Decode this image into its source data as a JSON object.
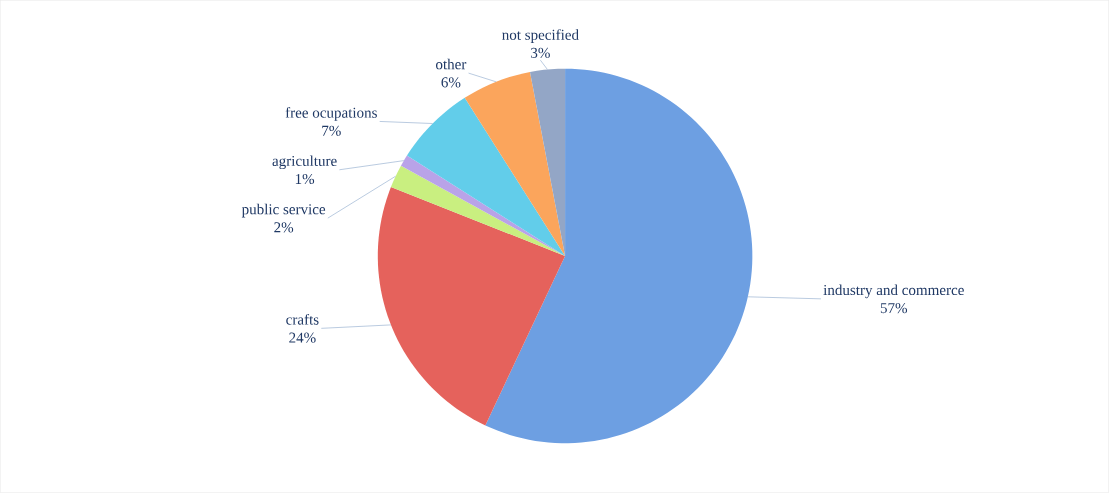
{
  "chart_data": {
    "type": "pie",
    "categories": [
      "industry and commerce",
      "crafts",
      "public service",
      "agriculture",
      "free ocupations",
      "other",
      "not specified"
    ],
    "values": [
      57,
      24,
      2,
      1,
      7,
      6,
      3
    ],
    "value_labels": [
      "57%",
      "24%",
      "2%",
      "1%",
      "7%",
      "6%",
      "3%"
    ],
    "colors": [
      "#6d9fe2",
      "#e5625c",
      "#c9ef80",
      "#b9a3e8",
      "#62cdea",
      "#fba55c",
      "#93a6c6"
    ]
  }
}
